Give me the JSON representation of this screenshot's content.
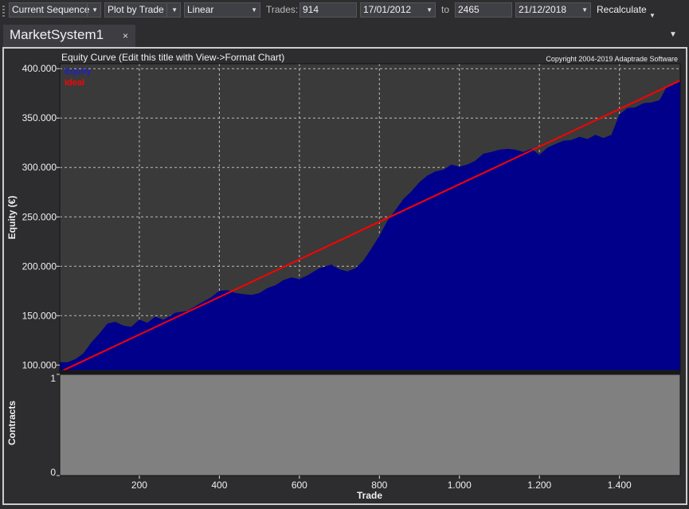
{
  "toolbar": {
    "sequence_select": "Current Sequence",
    "plot_mode_select": "Plot by Trade",
    "scale_select": "Linear",
    "trades_label": "Trades:",
    "trades_from": "914",
    "date_from": "17/01/2012",
    "to_label": "to",
    "trades_to": "2465",
    "date_to": "21/12/2018",
    "recalculate_label": "Recalculate"
  },
  "tab": {
    "title": "MarketSystem1",
    "close_glyph": "×"
  },
  "chart_data": [
    {
      "type": "area",
      "title": "Equity Curve (Edit this title with View->Format Chart)",
      "copyright": "Copyright 2004-2019 Adaptrade Software",
      "ylabel": "Equity (€)",
      "xlabel": "",
      "xlim": [
        1,
        1552
      ],
      "ylim": [
        93000,
        405000
      ],
      "yticks": [
        "100.000",
        "150.000",
        "200.000",
        "250.000",
        "300.000",
        "350.000",
        "400.000"
      ],
      "ytick_values": [
        100000,
        150000,
        200000,
        250000,
        300000,
        350000,
        400000
      ],
      "grid": true,
      "legend_position": "top-left",
      "series": [
        {
          "name": "Equity",
          "color": "#00008b",
          "x": [
            1,
            20,
            40,
            60,
            80,
            100,
            120,
            140,
            160,
            180,
            200,
            220,
            240,
            260,
            290,
            320,
            350,
            380,
            400,
            420,
            440,
            460,
            480,
            500,
            520,
            540,
            560,
            580,
            600,
            620,
            650,
            680,
            700,
            720,
            740,
            760,
            780,
            800,
            820,
            840,
            860,
            880,
            900,
            920,
            940,
            960,
            980,
            1000,
            1020,
            1040,
            1060,
            1080,
            1100,
            1120,
            1140,
            1160,
            1180,
            1200,
            1220,
            1240,
            1260,
            1280,
            1300,
            1320,
            1340,
            1360,
            1380,
            1400,
            1420,
            1440,
            1460,
            1480,
            1500,
            1520,
            1540,
            1552
          ],
          "y": [
            103000,
            104000,
            106000,
            113000,
            123000,
            133000,
            142000,
            145000,
            140000,
            140000,
            146000,
            144000,
            149000,
            147000,
            153000,
            156000,
            162000,
            170000,
            175000,
            177000,
            173000,
            173000,
            171000,
            174000,
            178000,
            182000,
            186000,
            190000,
            187000,
            192000,
            198000,
            203000,
            197000,
            196000,
            198000,
            207000,
            218000,
            232000,
            246000,
            258000,
            268000,
            277000,
            285000,
            293000,
            296000,
            299000,
            303000,
            302000,
            303000,
            308000,
            314000,
            317000,
            318000,
            320000,
            318000,
            317000,
            319000,
            314000,
            320000,
            325000,
            327000,
            329000,
            331000,
            330000,
            333000,
            331000,
            333000,
            355000,
            360000,
            362000,
            365000,
            367000,
            368000,
            384000,
            386000,
            389000
          ]
        },
        {
          "name": "Ideal",
          "color": "#ff0000",
          "x": [
            1,
            1552
          ],
          "y": [
            93000,
            388000
          ]
        }
      ]
    },
    {
      "type": "area",
      "title": "",
      "ylabel": "Contracts",
      "xlabel": "Trade",
      "xlim": [
        1,
        1552
      ],
      "ylim": [
        0,
        1
      ],
      "yticks": [
        "0",
        "1"
      ],
      "ytick_values": [
        0,
        1
      ],
      "xticks": [
        "200",
        "400",
        "600",
        "800",
        "1.000",
        "1.200",
        "1.400"
      ],
      "xtick_values": [
        200,
        400,
        600,
        800,
        1000,
        1200,
        1400
      ],
      "series": [
        {
          "name": "",
          "color": "#808080",
          "x": [
            1,
            1552
          ],
          "y": [
            1,
            1
          ]
        }
      ]
    }
  ]
}
